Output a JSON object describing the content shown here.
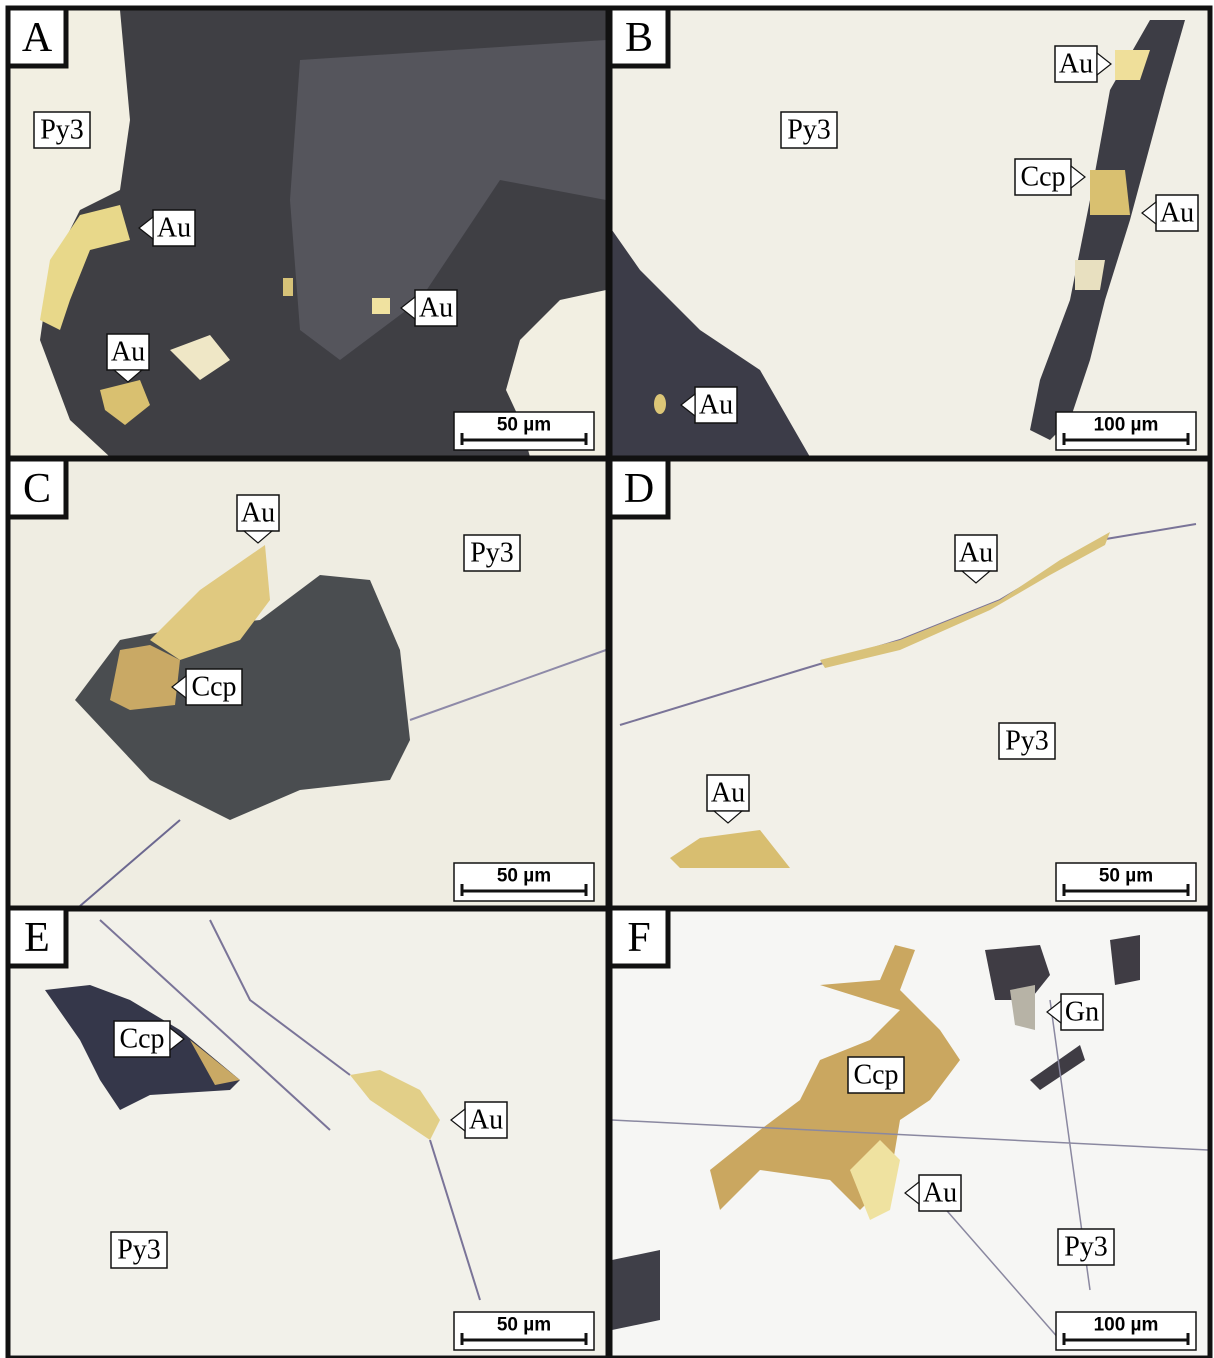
{
  "panels": [
    {
      "letter": "A",
      "labels": [
        "Py3",
        "Au",
        "Au",
        "Au"
      ],
      "scale_bar": "50 µm"
    },
    {
      "letter": "B",
      "labels": [
        "Py3",
        "Au",
        "Ccp",
        "Au",
        "Au"
      ],
      "scale_bar": "100 µm"
    },
    {
      "letter": "C",
      "labels": [
        "Au",
        "Py3",
        "Ccp"
      ],
      "scale_bar": "50 µm"
    },
    {
      "letter": "D",
      "labels": [
        "Au",
        "Py3",
        "Au"
      ],
      "scale_bar": "50 µm"
    },
    {
      "letter": "E",
      "labels": [
        "Ccp",
        "Au",
        "Py3"
      ],
      "scale_bar": "50 µm"
    },
    {
      "letter": "F",
      "labels": [
        "Gn",
        "Ccp",
        "Au",
        "Py3"
      ],
      "scale_bar": "100 µm"
    }
  ]
}
